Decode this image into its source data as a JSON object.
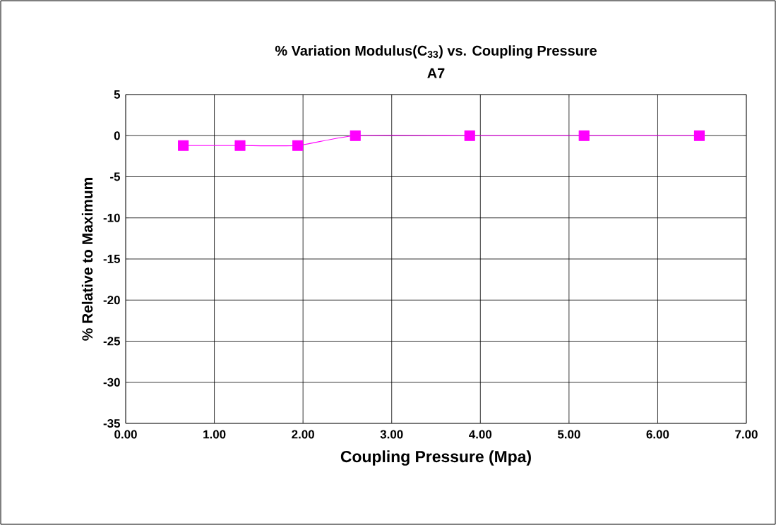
{
  "chart_data": {
    "type": "line",
    "title": "% Variation Modulus(C$_{33}$) vs. Coupling Pressure",
    "subtitle": "A7",
    "xlabel": "Coupling Pressure (Mpa)",
    "ylabel": "% Relative to Maximum",
    "x": [
      0.65,
      1.29,
      1.94,
      2.59,
      3.88,
      5.17,
      6.47
    ],
    "series": [
      {
        "color": "#ff00ff",
        "values": [
          -1.2,
          -1.2,
          -1.2,
          0,
          0,
          0,
          0
        ]
      }
    ],
    "xlim": [
      0,
      7
    ],
    "xticks": [
      {
        "value": 0,
        "label": "0.00"
      },
      {
        "value": 1,
        "label": "1.00"
      },
      {
        "value": 2,
        "label": "2.00"
      },
      {
        "value": 3,
        "label": "3.00"
      },
      {
        "value": 4,
        "label": "4.00"
      },
      {
        "value": 5,
        "label": "5.00"
      },
      {
        "value": 6,
        "label": "6.00"
      },
      {
        "value": 7,
        "label": "7.00"
      }
    ],
    "ylim": [
      -35,
      5
    ],
    "yticks": [
      -35,
      -30,
      -25,
      -20,
      -15,
      -10,
      -5,
      0,
      5
    ],
    "grid": true,
    "marker": "square",
    "line_style": "solid"
  }
}
